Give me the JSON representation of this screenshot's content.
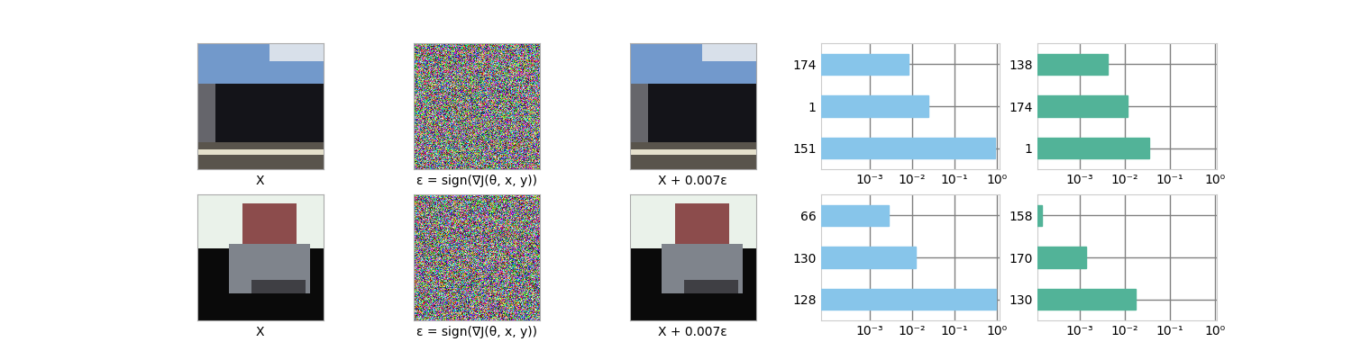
{
  "image_captions": [
    [
      "X",
      "ε = sign(∇J(θ, x, y))",
      "X + 0.007ε"
    ],
    [
      "X",
      "ε = sign(∇J(θ, x, y))",
      "X + 0.007ε"
    ]
  ],
  "chart_data": [
    {
      "type": "bar",
      "orientation": "horizontal",
      "log": "x",
      "grid": true,
      "categories": [
        "151",
        "1",
        "174"
      ],
      "values": [
        0.93,
        0.025,
        0.0082
      ],
      "color": "#87c5ea",
      "xlim": [
        7e-05,
        1.15
      ],
      "xticks": [
        {
          "value": 0.001,
          "label": "10⁻³"
        },
        {
          "value": 0.01,
          "label": "10⁻²"
        },
        {
          "value": 0.1,
          "label": "10⁻¹"
        },
        {
          "value": 1,
          "label": "10⁰"
        }
      ]
    },
    {
      "type": "bar",
      "orientation": "horizontal",
      "log": "x",
      "grid": true,
      "categories": [
        "1",
        "174",
        "138"
      ],
      "values": [
        0.035,
        0.0115,
        0.0042
      ],
      "color": "#52b398",
      "xlim": [
        0.000115,
        1.1
      ],
      "xticks": [
        {
          "value": 0.001,
          "label": "10⁻³"
        },
        {
          "value": 0.01,
          "label": "10⁻²"
        },
        {
          "value": 0.1,
          "label": "10⁻¹"
        },
        {
          "value": 1,
          "label": "10⁰"
        }
      ]
    },
    {
      "type": "bar",
      "orientation": "horizontal",
      "log": "x",
      "grid": true,
      "categories": [
        "128",
        "130",
        "66"
      ],
      "values": [
        0.97,
        0.0122,
        0.0029
      ],
      "color": "#87c5ea",
      "xlim": [
        7e-05,
        1.15
      ],
      "xticks": [
        {
          "value": 0.001,
          "label": "10⁻³"
        },
        {
          "value": 0.01,
          "label": "10⁻²"
        },
        {
          "value": 0.1,
          "label": "10⁻¹"
        },
        {
          "value": 1,
          "label": "10⁰"
        }
      ]
    },
    {
      "type": "bar",
      "orientation": "horizontal",
      "log": "x",
      "grid": true,
      "categories": [
        "130",
        "170",
        "158"
      ],
      "values": [
        0.0174,
        0.00138,
        0.000145
      ],
      "color": "#52b398",
      "xlim": [
        0.000115,
        1.1
      ],
      "xticks": [
        {
          "value": 0.001,
          "label": "10⁻³"
        },
        {
          "value": 0.01,
          "label": "10⁻²"
        },
        {
          "value": 0.1,
          "label": "10⁻¹"
        },
        {
          "value": 1,
          "label": "10⁰"
        }
      ]
    }
  ]
}
